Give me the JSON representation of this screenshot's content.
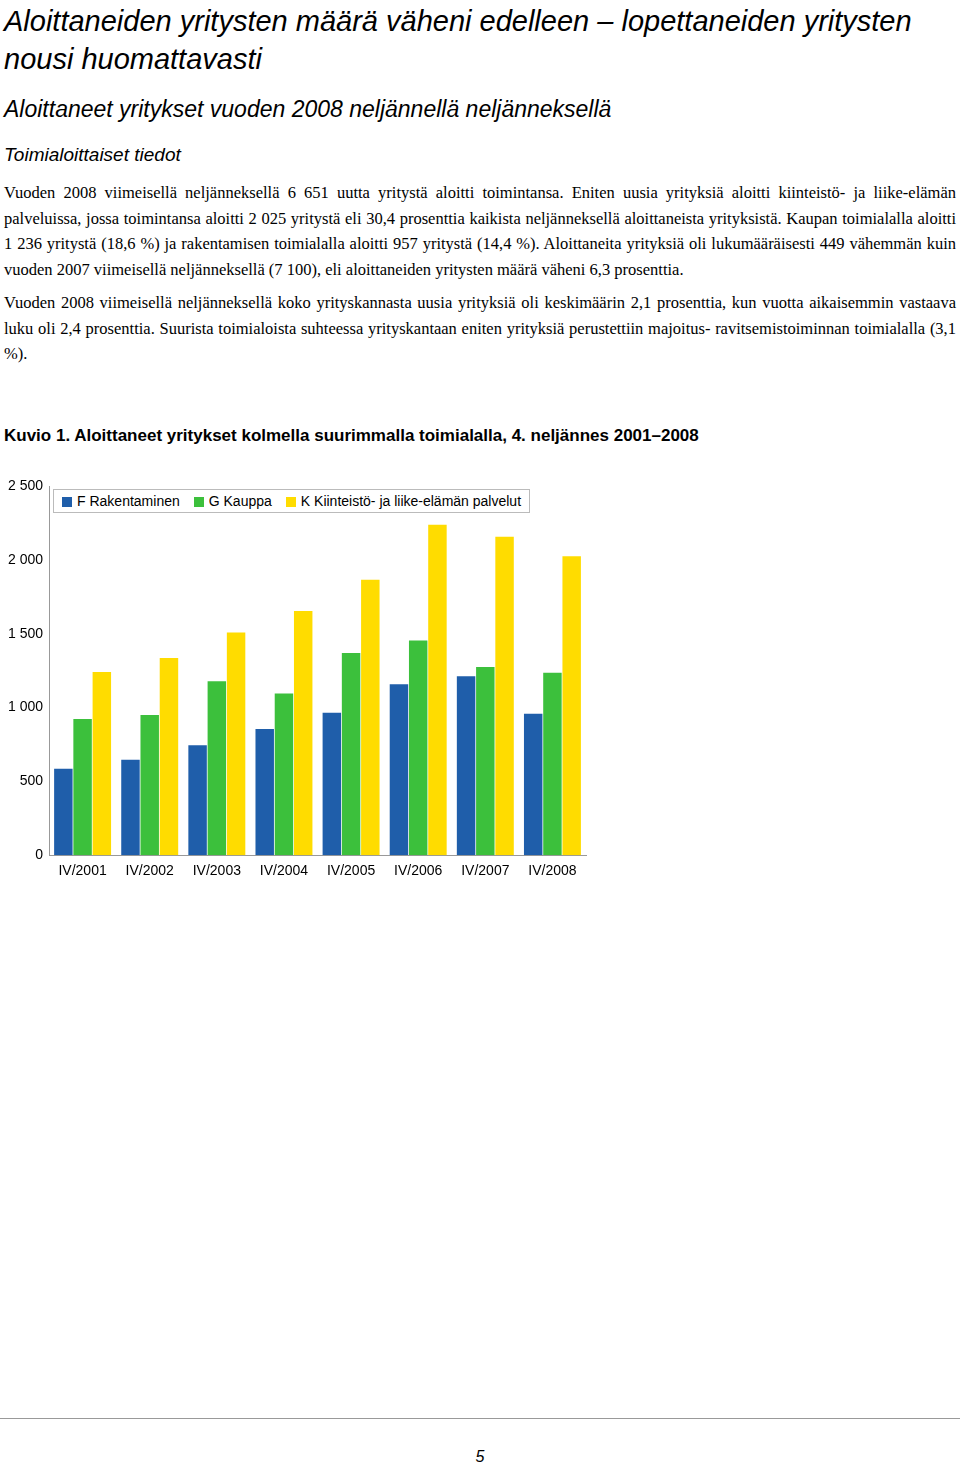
{
  "heading": "Aloittaneiden yritysten määrä väheni edelleen – lopettaneiden yritysten nousi huomattavasti",
  "subheading": "Aloittaneet yritykset vuoden 2008 neljännellä neljänneksellä",
  "section": "Toimialoittaiset tiedot",
  "paragraphs": [
    "Vuoden 2008 viimeisellä neljänneksellä 6 651 uutta yritystä aloitti toimintansa. Eniten uusia yrityksiä aloitti kiinteistö- ja liike-elämän palveluissa, jossa toimintansa aloitti 2 025 yritystä eli 30,4 prosenttia kaikista neljänneksellä aloittaneista yrityksistä. Kaupan toimialalla aloitti 1 236 yritystä (18,6 %) ja rakentamisen toimialalla aloitti 957 yritystä (14,4 %). Aloittaneita yrityksiä oli lukumääräisesti 449 vähemmän kuin vuoden 2007 viimeisellä neljänneksellä (7 100), eli aloittaneiden yritysten määrä väheni 6,3 prosenttia.",
    "Vuoden 2008 viimeisellä neljänneksellä koko yrityskannasta uusia yrityksiä oli keskimäärin 2,1 prosenttia, kun vuotta aikaisemmin vastaava luku oli 2,4 prosenttia. Suurista toimialoista suhteessa yrityskantaan eniten yrityksiä perustettiin majoitus- ravitsemistoiminnan toimialalla (3,1 %)."
  ],
  "figure_caption": "Kuvio 1. Aloittaneet yritykset kolmella suurimmalla toimialalla, 4. neljännes 2001–2008",
  "chart_data": {
    "type": "bar",
    "categories": [
      "IV/2001",
      "IV/2002",
      "IV/2003",
      "IV/2004",
      "IV/2005",
      "IV/2006",
      "IV/2007",
      "IV/2008"
    ],
    "series": [
      {
        "name": "F Rakentaminen",
        "color": "#1f5eaa",
        "values": [
          585,
          647,
          744,
          854,
          964,
          1157,
          1212,
          957
        ]
      },
      {
        "name": "G Kauppa",
        "color": "#3cc03c",
        "values": [
          923,
          950,
          1178,
          1095,
          1370,
          1453,
          1274,
          1236
        ]
      },
      {
        "name": "K Kiinteistö- ja liike-elämän palvelut",
        "color": "#ffdc00",
        "values": [
          1240,
          1336,
          1508,
          1653,
          1866,
          2238,
          2156,
          2025
        ]
      }
    ],
    "ylim": [
      0,
      2500
    ],
    "yticks": [
      0,
      500,
      {
        "value": 1000,
        "label": "1 000"
      },
      {
        "value": 1500,
        "label": "1 500"
      },
      {
        "value": 2000,
        "label": "2 000"
      },
      {
        "value": 2500,
        "label": "2 500"
      }
    ],
    "grid": false,
    "legend": "upper left"
  },
  "page_number": "5"
}
